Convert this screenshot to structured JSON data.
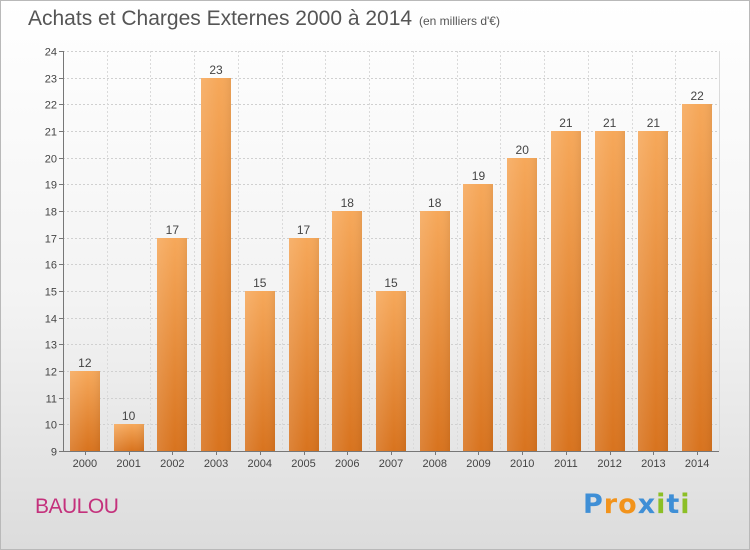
{
  "chart_data": {
    "type": "bar",
    "title": "Achats et Charges Externes 2000 à 2014",
    "subtitle": "(en milliers d'€)",
    "xlabel": "",
    "ylabel": "",
    "categories": [
      "2000",
      "2001",
      "2002",
      "2003",
      "2004",
      "2005",
      "2006",
      "2007",
      "2008",
      "2009",
      "2010",
      "2011",
      "2012",
      "2013",
      "2014"
    ],
    "values": [
      12,
      10,
      17,
      23,
      15,
      17,
      18,
      15,
      18,
      19,
      20,
      21,
      21,
      21,
      22
    ],
    "ylim": [
      9,
      24
    ],
    "yticks": [
      9,
      10,
      11,
      12,
      13,
      14,
      15,
      16,
      17,
      18,
      19,
      20,
      21,
      22,
      23,
      24
    ],
    "grid": true,
    "bar_color_top": "#f6a85a",
    "bar_color_bottom": "#d8731e"
  },
  "footer": {
    "commune": "BAULOU",
    "brand": "Proxiti",
    "brand_letters": [
      "P",
      "r",
      "o",
      "x",
      "i",
      "t",
      "i"
    ],
    "brand_colors": [
      "#3f8fd6",
      "#f2931b",
      "#f2931b",
      "#3f8fd6",
      "#8cbf26",
      "#3f8fd6",
      "#8cbf26"
    ]
  }
}
